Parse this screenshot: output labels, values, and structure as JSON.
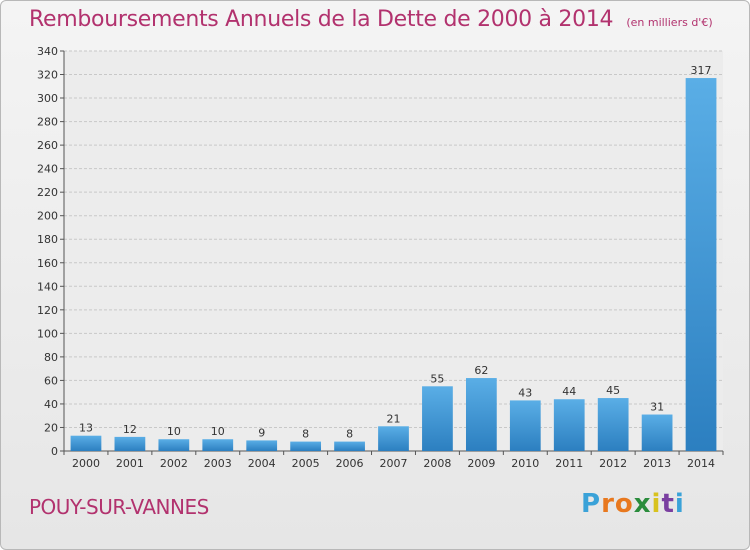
{
  "title": "Remboursements Annuels de la Dette de 2000 à 2014",
  "subtitle": "(en milliers d'€)",
  "town": "POUY-SUR-VANNES",
  "logo_letters": [
    "P",
    "r",
    "o",
    "x",
    "i",
    "t",
    "i"
  ],
  "logo_colors": [
    "#3aa2d8",
    "#e8781e",
    "#e8781e",
    "#2a8c3c",
    "#d8c21e",
    "#7a3fa0",
    "#3aa2d8"
  ],
  "colors": {
    "accent": "#b2326e",
    "bar_light": "#5aaee6",
    "bar_dark": "#2c7fc0",
    "grid": "#c8c8c8"
  },
  "chart_data": {
    "type": "bar",
    "categories": [
      "2000",
      "2001",
      "2002",
      "2003",
      "2004",
      "2005",
      "2006",
      "2007",
      "2008",
      "2009",
      "2010",
      "2011",
      "2012",
      "2013",
      "2014"
    ],
    "values": [
      13,
      12,
      10,
      10,
      9,
      8,
      8,
      21,
      55,
      62,
      43,
      44,
      45,
      31,
      317
    ],
    "title": "Remboursements Annuels de la Dette de 2000 à 2014",
    "ylim": [
      0,
      340
    ],
    "yticks": [
      0,
      20,
      40,
      60,
      80,
      100,
      120,
      140,
      160,
      180,
      200,
      220,
      240,
      260,
      280,
      300,
      320,
      340
    ],
    "grid": true,
    "data_labels": true
  }
}
